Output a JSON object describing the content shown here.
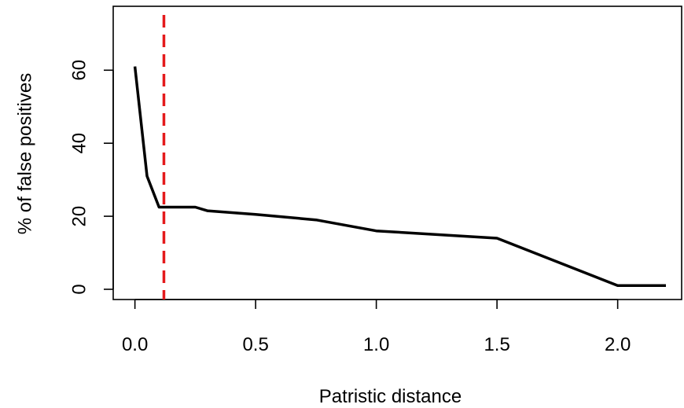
{
  "chart_data": {
    "type": "line",
    "xlabel": "Patristic distance",
    "ylabel": "% of false positives",
    "xlim": [
      -0.09,
      2.265
    ],
    "ylim": [
      -2.8,
      77.5
    ],
    "xticks": [
      0.0,
      0.5,
      1.0,
      1.5,
      2.0
    ],
    "xtick_labels": [
      "0.0",
      "0.5",
      "1.0",
      "1.5",
      "2.0"
    ],
    "yticks": [
      0,
      20,
      40,
      60
    ],
    "ytick_labels": [
      "0",
      "20",
      "40",
      "60"
    ],
    "series": [
      {
        "color": "#000000",
        "x": [
          0.0,
          0.05,
          0.1,
          0.15,
          0.2,
          0.25,
          0.3,
          0.5,
          0.75,
          1.0,
          1.5,
          2.0,
          2.2
        ],
        "y": [
          61,
          31,
          22.5,
          22.5,
          22.5,
          22.5,
          21.5,
          20.5,
          19,
          16,
          14,
          1,
          1
        ]
      }
    ],
    "threshold": {
      "x": 0.12,
      "color": "#e41a1c",
      "style": "dashed"
    },
    "grid": false,
    "legend": "none"
  }
}
